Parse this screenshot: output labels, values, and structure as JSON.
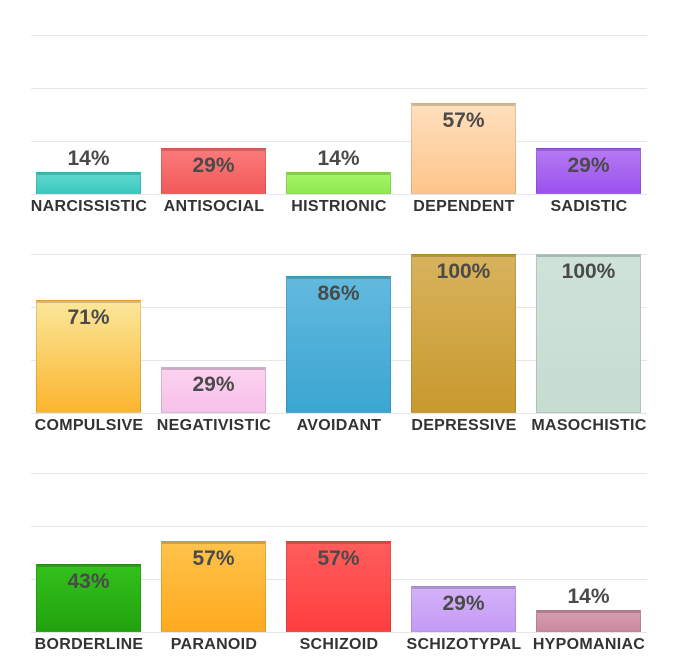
{
  "chart_data": [
    {
      "type": "bar",
      "ylim": [
        0,
        100
      ],
      "categories": [
        "NARCISSISTIC",
        "ANTISOCIAL",
        "HISTRIONIC",
        "DEPENDENT",
        "SADISTIC"
      ],
      "values": [
        14,
        29,
        14,
        57,
        29
      ],
      "labels": [
        "14%",
        "29%",
        "14%",
        "57%",
        "29%"
      ],
      "colors": [
        [
          "#5fd8cf",
          "#3cc9c0"
        ],
        [
          "#fb7b7b",
          "#f25a5a"
        ],
        [
          "#a7f56b",
          "#8fea50"
        ],
        [
          "#ffe0bd",
          "#ffc48c"
        ],
        [
          "#b67af4",
          "#9b52ee"
        ]
      ]
    },
    {
      "type": "bar",
      "ylim": [
        0,
        100
      ],
      "categories": [
        "COMPULSIVE",
        "NEGATIVISTIC",
        "AVOIDANT",
        "DEPRESSIVE",
        "MASOCHISTIC"
      ],
      "values": [
        71,
        29,
        86,
        100,
        100
      ],
      "labels": [
        "71%",
        "29%",
        "86%",
        "100%",
        "100%"
      ],
      "colors": [
        [
          "#fbe79a",
          "#fbb52e"
        ],
        [
          "#fcd2ef",
          "#f7c1e9"
        ],
        [
          "#63b9de",
          "#3ba6d2"
        ],
        [
          "#d8b35d",
          "#c8992e"
        ],
        [
          "#cfe2d9",
          "#c6ddd2"
        ]
      ]
    },
    {
      "type": "bar",
      "ylim": [
        0,
        100
      ],
      "categories": [
        "BORDERLINE",
        "PARANOID",
        "SCHIZOID",
        "SCHIZOTYPAL",
        "HYPOMANIAC"
      ],
      "values": [
        43,
        57,
        57,
        29,
        14
      ],
      "labels": [
        "43%",
        "57%",
        "57%",
        "29%",
        "14%"
      ],
      "colors": [
        [
          "#33c11c",
          "#22a30e"
        ],
        [
          "#ffc34c",
          "#ffaa20"
        ],
        [
          "#ff5d5d",
          "#ff3e3e"
        ],
        [
          "#d4b2f8",
          "#c49bf5"
        ],
        [
          "#d69eaf",
          "#cc8aa0"
        ]
      ]
    }
  ]
}
